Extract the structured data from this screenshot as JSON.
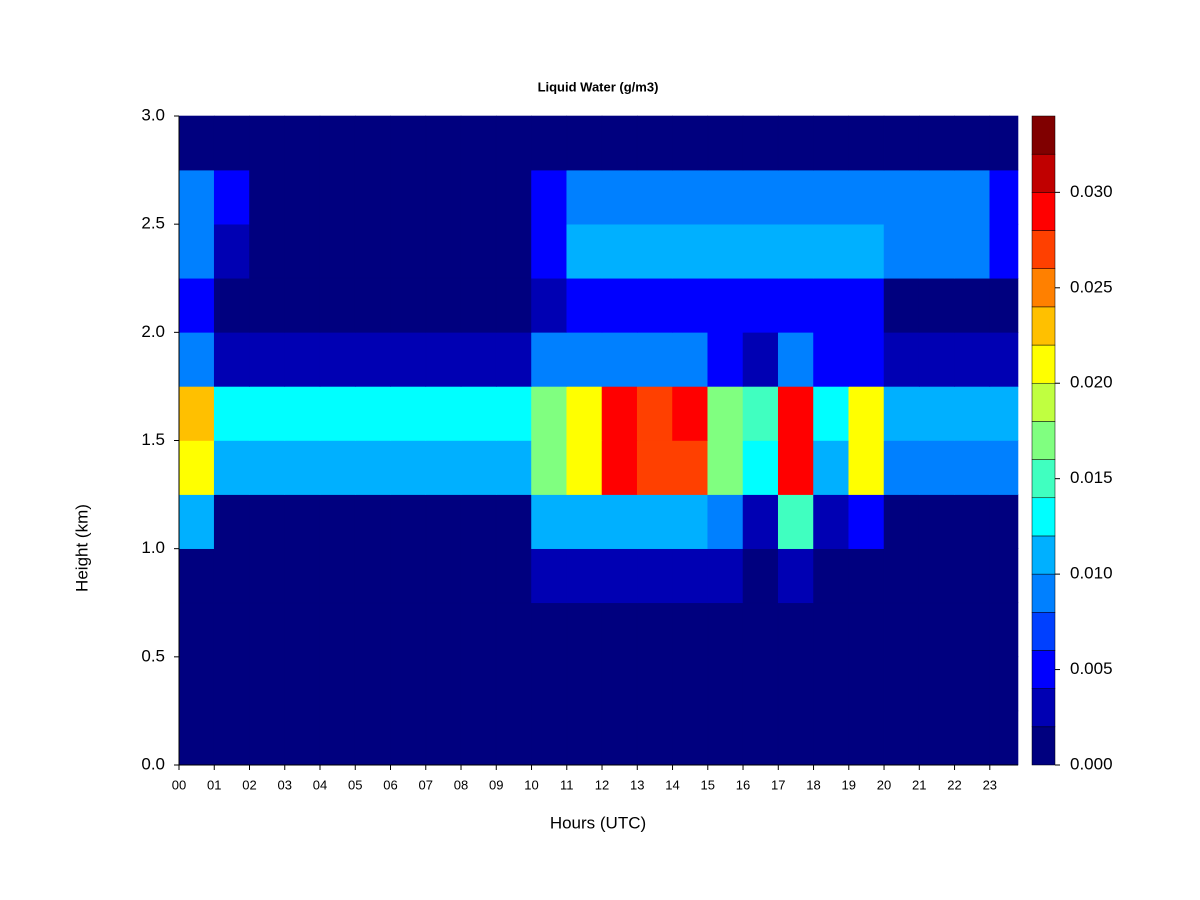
{
  "chart_data": {
    "type": "heatmap",
    "title": "Liquid Water (g/m3)",
    "xlabel": "Hours (UTC)",
    "ylabel": "Height (km)",
    "xbins": [
      0,
      1,
      2,
      3,
      4,
      5,
      6,
      7,
      8,
      9,
      10,
      11,
      12,
      13,
      14,
      15,
      16,
      17,
      18,
      19,
      20,
      21,
      22,
      23,
      23.8
    ],
    "ybins": [
      0,
      0.25,
      0.5,
      0.75,
      1.0,
      1.25,
      1.5,
      1.75,
      2.0,
      2.25,
      2.5,
      2.75,
      3.0
    ],
    "values": [
      [
        0,
        0,
        0,
        0,
        0,
        0,
        0,
        0,
        0,
        0,
        0,
        0,
        0,
        0,
        0,
        0,
        0,
        0,
        0,
        0,
        0,
        0,
        0,
        0
      ],
      [
        0,
        0,
        0,
        0,
        0,
        0,
        0,
        0,
        0,
        0,
        0,
        0,
        0,
        0,
        0,
        0,
        0,
        0,
        0,
        0,
        0,
        0,
        0,
        0
      ],
      [
        0,
        0,
        0,
        0,
        0,
        0,
        0,
        0,
        0,
        0,
        0,
        0,
        0,
        0,
        0,
        0,
        0,
        0,
        0,
        0,
        0,
        0,
        0,
        0
      ],
      [
        0.001,
        0,
        0,
        0,
        0,
        0,
        0,
        0,
        0,
        0,
        0.002,
        0.002,
        0.002,
        0.002,
        0.002,
        0.002,
        0,
        0.002,
        0,
        0.001,
        0,
        0,
        0,
        0
      ],
      [
        0.01,
        0.001,
        0.001,
        0.001,
        0.001,
        0.001,
        0.001,
        0.001,
        0.001,
        0.001,
        0.012,
        0.012,
        0.012,
        0.012,
        0.012,
        0.008,
        0.002,
        0.014,
        0.002,
        0.006,
        0.001,
        0.001,
        0.001,
        0.001
      ],
      [
        0.022,
        0.011,
        0.011,
        0.011,
        0.011,
        0.011,
        0.011,
        0.011,
        0.011,
        0.011,
        0.016,
        0.02,
        0.028,
        0.026,
        0.027,
        0.016,
        0.013,
        0.03,
        0.012,
        0.02,
        0.009,
        0.009,
        0.009,
        0.009
      ],
      [
        0.024,
        0.013,
        0.013,
        0.013,
        0.013,
        0.013,
        0.013,
        0.013,
        0.013,
        0.013,
        0.018,
        0.022,
        0.029,
        0.027,
        0.028,
        0.018,
        0.014,
        0.03,
        0.013,
        0.022,
        0.012,
        0.012,
        0.012,
        0.012
      ],
      [
        0.008,
        0.002,
        0.002,
        0.002,
        0.002,
        0.002,
        0.002,
        0.002,
        0.002,
        0.002,
        0.008,
        0.008,
        0.008,
        0.008,
        0.008,
        0.004,
        0.003,
        0.008,
        0.005,
        0.006,
        0.002,
        0.002,
        0.002,
        0.002
      ],
      [
        0.004,
        0,
        0,
        0,
        0,
        0,
        0,
        0,
        0,
        0,
        0.002,
        0.005,
        0.005,
        0.005,
        0.005,
        0.004,
        0.004,
        0.006,
        0.004,
        0.005,
        0.001,
        0.001,
        0.001,
        0.001
      ],
      [
        0.008,
        0.003,
        0,
        0,
        0,
        0,
        0,
        0,
        0,
        0,
        0.004,
        0.01,
        0.01,
        0.01,
        0.01,
        0.01,
        0.01,
        0.01,
        0.01,
        0.01,
        0.009,
        0.009,
        0.009,
        0.004
      ],
      [
        0.008,
        0.004,
        0,
        0,
        0,
        0,
        0,
        0,
        0,
        0,
        0.004,
        0.009,
        0.009,
        0.009,
        0.009,
        0.009,
        0.009,
        0.009,
        0.009,
        0.009,
        0.008,
        0.008,
        0.008,
        0.004
      ],
      [
        0,
        0,
        0,
        0,
        0,
        0,
        0,
        0,
        0,
        0,
        0,
        0,
        0,
        0,
        0,
        0,
        0,
        0,
        0,
        0,
        0,
        0,
        0,
        0
      ]
    ],
    "xlim": [
      0,
      23.8
    ],
    "ylim": [
      0,
      3
    ],
    "xticks": [
      {
        "value": 0,
        "label": "00"
      },
      {
        "value": 1,
        "label": "01"
      },
      {
        "value": 2,
        "label": "02"
      },
      {
        "value": 3,
        "label": "03"
      },
      {
        "value": 4,
        "label": "04"
      },
      {
        "value": 5,
        "label": "05"
      },
      {
        "value": 6,
        "label": "06"
      },
      {
        "value": 7,
        "label": "07"
      },
      {
        "value": 8,
        "label": "08"
      },
      {
        "value": 9,
        "label": "09"
      },
      10,
      11,
      12,
      13,
      14,
      15,
      16,
      17,
      18,
      19,
      20,
      21,
      22,
      23
    ],
    "yticks": [
      {
        "value": 0,
        "label": "0.0"
      },
      0.5,
      {
        "value": 1,
        "label": "1.0"
      },
      1.5,
      {
        "value": 2,
        "label": "2.0"
      },
      2.5,
      {
        "value": 3,
        "label": "3.0"
      }
    ],
    "zlim": [
      0,
      0.034
    ],
    "zticks": [
      {
        "value": 0,
        "label": "0.000"
      },
      {
        "value": 0.005,
        "label": "0.005"
      },
      {
        "value": 0.01,
        "label": "0.010"
      },
      {
        "value": 0.015,
        "label": "0.015"
      },
      {
        "value": 0.02,
        "label": "0.020"
      },
      {
        "value": 0.025,
        "label": "0.025"
      },
      {
        "value": 0.03,
        "label": "0.030"
      }
    ],
    "colors": [
      "#00007F",
      "#0000B3",
      "#0000FF",
      "#0040FF",
      "#0080FF",
      "#00B0FF",
      "#00FFFF",
      "#40FFC0",
      "#80FF80",
      "#C0FF40",
      "#FFFF00",
      "#FFC000",
      "#FF8000",
      "#FF4000",
      "#FF0000",
      "#C00000",
      "#800000"
    ]
  }
}
